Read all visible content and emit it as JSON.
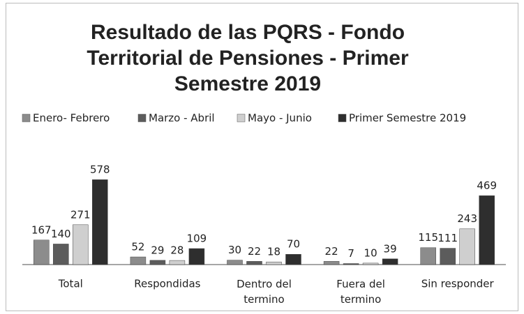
{
  "chart_data": {
    "type": "bar",
    "title": "Resultado de las PQRS - Fondo Territorial de Pensiones - Primer Semestre 2019",
    "categories": [
      "Total",
      "Respondidas",
      "Dentro del termino",
      "Fuera del termino",
      "Sin responder"
    ],
    "series": [
      {
        "name": "Enero- Febrero",
        "color": "#8c8c8c",
        "values": [
          167,
          52,
          30,
          22,
          115
        ]
      },
      {
        "name": "Marzo - Abril",
        "color": "#5c5c5c",
        "values": [
          140,
          29,
          22,
          7,
          111
        ]
      },
      {
        "name": "Mayo - Junio",
        "color": "#cfcfcf",
        "values": [
          271,
          28,
          18,
          10,
          243
        ]
      },
      {
        "name": "Primer Semestre 2019",
        "color": "#2e2e2e",
        "values": [
          578,
          109,
          70,
          39,
          469
        ]
      }
    ],
    "legend": "top"
  }
}
